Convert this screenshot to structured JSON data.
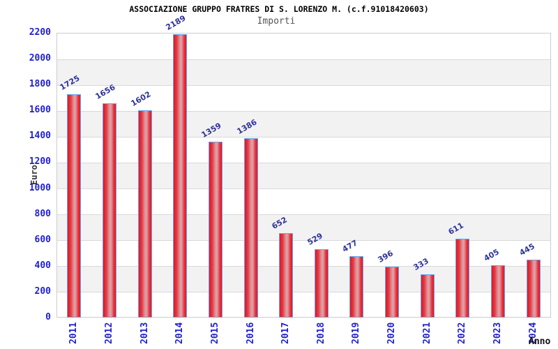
{
  "header": {
    "title": "ASSOCIAZIONE GRUPPO FRATRES DI S. LORENZO M. (c.f.91018420603)",
    "subtitle": "Importi"
  },
  "chart_data": {
    "type": "bar",
    "title": "ASSOCIAZIONE GRUPPO FRATRES DI S. LORENZO M. (c.f.91018420603)",
    "subtitle": "Importi",
    "xlabel": "Anno",
    "ylabel": "Euro",
    "categories": [
      "2011",
      "2012",
      "2013",
      "2014",
      "2015",
      "2016",
      "2017",
      "2018",
      "2019",
      "2020",
      "2021",
      "2022",
      "2023",
      "2024"
    ],
    "values": [
      1725,
      1656,
      1602,
      2189,
      1359,
      1386,
      652,
      529,
      477,
      396,
      333,
      611,
      405,
      445
    ],
    "ylim": [
      0,
      2200
    ],
    "ytick_step": 200,
    "yticks": [
      0,
      200,
      400,
      600,
      800,
      1000,
      1200,
      1400,
      1600,
      1800,
      2000,
      2200
    ],
    "grid": "horizontal",
    "legend": "none",
    "colors": {
      "bar_fill": "#e7131f",
      "bar_highlight": "#d9a6ab",
      "bar_border": "#64a7f0",
      "tick_label": "#2121cc",
      "value_label": "#2f339b",
      "gridline": "#d9d9d9",
      "band": "#f2f2f2",
      "title": "#000000",
      "subtitle": "#555555",
      "axis_label": "#333333"
    }
  }
}
